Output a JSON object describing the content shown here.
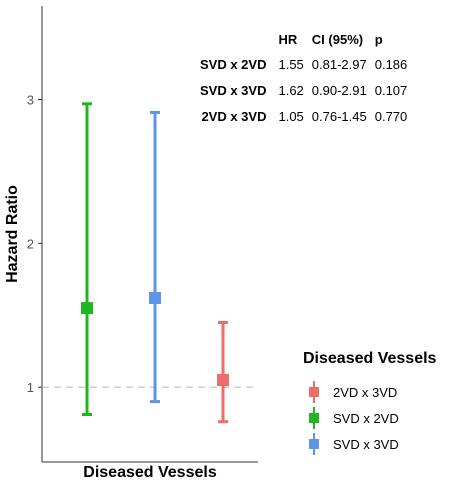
{
  "chart_data": {
    "type": "forest",
    "xlabel": "Diseased Vessels",
    "ylabel": "Hazard Ratio",
    "ylim": [
      0.48,
      3.65
    ],
    "yticks": [
      1,
      2,
      3
    ],
    "reference_line": 1,
    "grid": false,
    "legend": {
      "title": "Diseased Vessels",
      "position": "right"
    },
    "series": [
      {
        "name": "SVD x 2VD",
        "color": "#22b522",
        "hr": 1.55,
        "lower": 0.81,
        "upper": 2.97
      },
      {
        "name": "SVD x 3VD",
        "color": "#5f95e6",
        "hr": 1.62,
        "lower": 0.9,
        "upper": 2.91
      },
      {
        "name": "2VD x 3VD",
        "color": "#eb6e6a",
        "hr": 1.05,
        "lower": 0.76,
        "upper": 1.45
      }
    ],
    "legend_order": [
      "2VD x 3VD",
      "SVD x 2VD",
      "SVD x 3VD"
    ],
    "table": {
      "headers": [
        "HR",
        "CI (95%)",
        "p"
      ],
      "rows": [
        {
          "label": "SVD x 2VD",
          "hr": "1.55",
          "ci": "0.81-2.97",
          "p": "0.186"
        },
        {
          "label": "SVD x 3VD",
          "hr": "1.62",
          "ci": "0.90-2.91",
          "p": "0.107"
        },
        {
          "label": "2VD x 3VD",
          "hr": "1.05",
          "ci": "0.76-1.45",
          "p": "0.770"
        }
      ]
    }
  }
}
